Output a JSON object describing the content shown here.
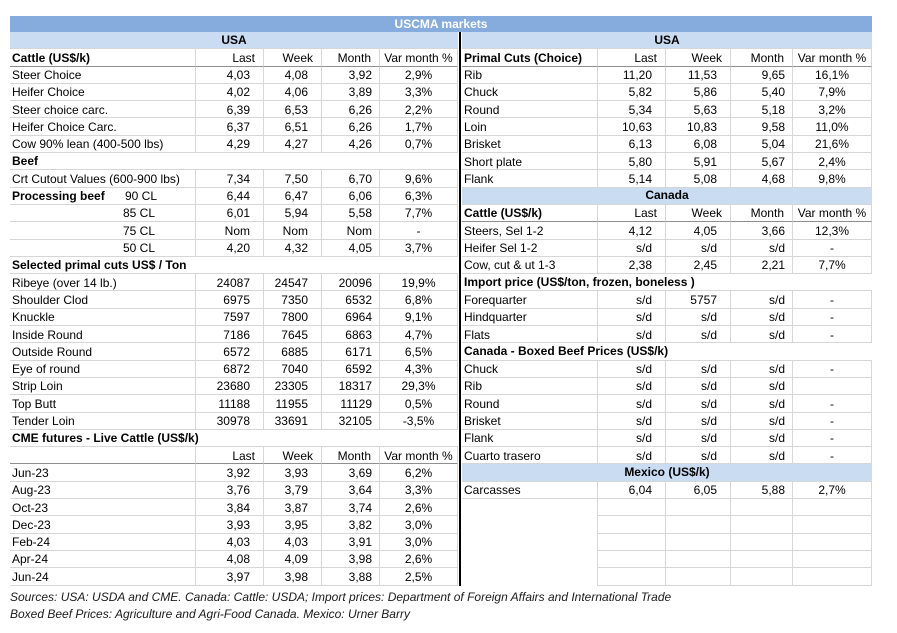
{
  "title": "USCMA markets",
  "colors": {
    "title_band": "#85ACDC",
    "region_band": "#C9DCF1",
    "divider": "#000000",
    "gridline": "#D6D6D6",
    "title_text": "#FFFFFF"
  },
  "columns": [
    "Last",
    "Week",
    "Month",
    "Var month %"
  ],
  "left_table": {
    "rows": [
      {
        "t": "band",
        "l": "USA"
      },
      {
        "t": "h",
        "l": "Cattle (US$/k)",
        "v": [
          "Last",
          "Week",
          "Month",
          "Var month %"
        ]
      },
      {
        "t": "d",
        "l": "Steer Choice",
        "v": [
          "4,03",
          "4,08",
          "3,92",
          "2,9%"
        ]
      },
      {
        "t": "d",
        "l": "Heifer Choice",
        "v": [
          "4,02",
          "4,06",
          "3,89",
          "3,3%"
        ]
      },
      {
        "t": "d",
        "l": "Steer choice carc.",
        "v": [
          "6,39",
          "6,53",
          "6,26",
          "2,2%"
        ]
      },
      {
        "t": "d",
        "l": "Heifer Choice Carc.",
        "v": [
          "6,37",
          "6,51",
          "6,26",
          "1,7%"
        ]
      },
      {
        "t": "d",
        "l": "Cow 90% lean (400-500 lbs)",
        "v": [
          "4,29",
          "4,27",
          "4,26",
          "0,7%"
        ]
      },
      {
        "t": "s",
        "l": "Beef"
      },
      {
        "t": "d",
        "l": "Crt Cutout Values (600-900 lbs)",
        "v": [
          "7,34",
          "7,50",
          "6,70",
          "9,6%"
        ]
      },
      {
        "t": "split",
        "l": "Processing beef",
        "l2": "90 CL",
        "v": [
          "6,44",
          "6,47",
          "6,06",
          "6,3%"
        ]
      },
      {
        "t": "dr",
        "l": "85 CL",
        "v": [
          "6,01",
          "5,94",
          "5,58",
          "7,7%"
        ]
      },
      {
        "t": "dr",
        "l": "75 CL",
        "v": [
          "Nom",
          "Nom",
          "Nom",
          "-"
        ]
      },
      {
        "t": "dr",
        "l": "50 CL",
        "v": [
          "4,20",
          "4,32",
          "4,05",
          "3,7%"
        ]
      },
      {
        "t": "s",
        "l": "Selected primal cuts US$ / Ton"
      },
      {
        "t": "d",
        "l": "Ribeye (over 14 lb.)",
        "v": [
          "24087",
          "24547",
          "20096",
          "19,9%"
        ]
      },
      {
        "t": "d",
        "l": "Shoulder Clod",
        "v": [
          "6975",
          "7350",
          "6532",
          "6,8%"
        ]
      },
      {
        "t": "d",
        "l": "Knuckle",
        "v": [
          "7597",
          "7800",
          "6964",
          "9,1%"
        ]
      },
      {
        "t": "d",
        "l": "Inside Round",
        "v": [
          "7186",
          "7645",
          "6863",
          "4,7%"
        ]
      },
      {
        "t": "d",
        "l": "Outside Round",
        "v": [
          "6572",
          "6885",
          "6171",
          "6,5%"
        ]
      },
      {
        "t": "d",
        "l": "Eye of round",
        "v": [
          "6872",
          "7040",
          "6592",
          "4,3%"
        ]
      },
      {
        "t": "d",
        "l": "Strip Loin",
        "v": [
          "23680",
          "23305",
          "18317",
          "29,3%"
        ]
      },
      {
        "t": "d",
        "l": "Top Butt",
        "v": [
          "11188",
          "11955",
          "11129",
          "0,5%"
        ]
      },
      {
        "t": "d",
        "l": "Tender Loin",
        "v": [
          "30978",
          "33691",
          "32105",
          "-3,5%"
        ]
      },
      {
        "t": "s",
        "l": "CME futures - Live Cattle (US$/k)"
      },
      {
        "t": "h",
        "l": "",
        "v": [
          "Last",
          "Week",
          "Month",
          "Var month %"
        ]
      },
      {
        "t": "d",
        "l": "Jun-23",
        "v": [
          "3,92",
          "3,93",
          "3,69",
          "6,2%"
        ]
      },
      {
        "t": "d",
        "l": "Aug-23",
        "v": [
          "3,76",
          "3,79",
          "3,64",
          "3,3%"
        ]
      },
      {
        "t": "d",
        "l": "Oct-23",
        "v": [
          "3,84",
          "3,87",
          "3,74",
          "2,6%"
        ]
      },
      {
        "t": "d",
        "l": "Dec-23",
        "v": [
          "3,93",
          "3,95",
          "3,82",
          "3,0%"
        ]
      },
      {
        "t": "d",
        "l": "Feb-24",
        "v": [
          "4,03",
          "4,03",
          "3,91",
          "3,0%"
        ]
      },
      {
        "t": "d",
        "l": "Apr-24",
        "v": [
          "4,08",
          "4,09",
          "3,98",
          "2,6%"
        ]
      },
      {
        "t": "d",
        "l": "Jun-24",
        "v": [
          "3,97",
          "3,98",
          "3,88",
          "2,5%"
        ]
      }
    ]
  },
  "right_table": {
    "rows": [
      {
        "t": "band",
        "l": "USA"
      },
      {
        "t": "h",
        "l": "Primal Cuts (Choice)",
        "v": [
          "Last",
          "Week",
          "Month",
          "Var month %"
        ]
      },
      {
        "t": "d",
        "l": "Rib",
        "v": [
          "11,20",
          "11,53",
          "9,65",
          "16,1%"
        ]
      },
      {
        "t": "d",
        "l": "Chuck",
        "v": [
          "5,82",
          "5,86",
          "5,40",
          "7,9%"
        ]
      },
      {
        "t": "d",
        "l": "Round",
        "v": [
          "5,34",
          "5,63",
          "5,18",
          "3,2%"
        ]
      },
      {
        "t": "d",
        "l": "Loin",
        "v": [
          "10,63",
          "10,83",
          "9,58",
          "11,0%"
        ]
      },
      {
        "t": "d",
        "l": "Brisket",
        "v": [
          "6,13",
          "6,08",
          "5,04",
          "21,6%"
        ]
      },
      {
        "t": "d",
        "l": "Short plate",
        "v": [
          "5,80",
          "5,91",
          "5,67",
          "2,4%"
        ]
      },
      {
        "t": "d",
        "l": "Flank",
        "v": [
          "5,14",
          "5,08",
          "4,68",
          "9,8%"
        ]
      },
      {
        "t": "band",
        "l": "Canada"
      },
      {
        "t": "h",
        "l": "Cattle (US$/k)",
        "v": [
          "Last",
          "Week",
          "Month",
          "Var month %"
        ]
      },
      {
        "t": "d",
        "l": "Steers, Sel 1-2",
        "v": [
          "4,12",
          "4,05",
          "3,66",
          "12,3%"
        ]
      },
      {
        "t": "d",
        "l": "Heifer Sel 1-2",
        "v": [
          "s/d",
          "s/d",
          "s/d",
          "-"
        ]
      },
      {
        "t": "d",
        "l": "Cow, cut & ut 1-3",
        "v": [
          "2,38",
          "2,45",
          "2,21",
          "7,7%"
        ]
      },
      {
        "t": "s",
        "l": "Import price (US$/ton, frozen, boneless )"
      },
      {
        "t": "d",
        "l": "Forequarter",
        "v": [
          "s/d",
          "5757",
          "s/d",
          "-"
        ]
      },
      {
        "t": "d",
        "l": "Hindquarter",
        "v": [
          "s/d",
          "s/d",
          "s/d",
          "-"
        ]
      },
      {
        "t": "d",
        "l": "Flats",
        "v": [
          "s/d",
          "s/d",
          "s/d",
          "-"
        ]
      },
      {
        "t": "s",
        "l": "Canada - Boxed Beef Prices (US$/k)"
      },
      {
        "t": "d",
        "l": "Chuck",
        "v": [
          "s/d",
          "s/d",
          "s/d",
          "-"
        ]
      },
      {
        "t": "d",
        "l": "Rib",
        "v": [
          "s/d",
          "s/d",
          "s/d",
          ""
        ]
      },
      {
        "t": "d",
        "l": "Round",
        "v": [
          "s/d",
          "s/d",
          "s/d",
          "-"
        ]
      },
      {
        "t": "d",
        "l": "Brisket",
        "v": [
          "s/d",
          "s/d",
          "s/d",
          "-"
        ]
      },
      {
        "t": "d",
        "l": "Flank",
        "v": [
          "s/d",
          "s/d",
          "s/d",
          "-"
        ]
      },
      {
        "t": "d",
        "l": "Cuarto trasero",
        "v": [
          "s/d",
          "s/d",
          "s/d",
          "-"
        ]
      },
      {
        "t": "band",
        "l": "Mexico (US$/k)"
      },
      {
        "t": "d",
        "l": "Carcasses",
        "v": [
          "6,04",
          "6,05",
          "5,88",
          "2,7%"
        ]
      },
      {
        "t": "e",
        "l": "",
        "v": [
          "",
          "",
          "",
          ""
        ]
      },
      {
        "t": "e",
        "l": "",
        "v": [
          "",
          "",
          "",
          ""
        ]
      },
      {
        "t": "e",
        "l": "",
        "v": [
          "",
          "",
          "",
          ""
        ]
      },
      {
        "t": "e",
        "l": "",
        "v": [
          "",
          "",
          "",
          ""
        ]
      },
      {
        "t": "e",
        "l": "",
        "v": [
          "",
          "",
          "",
          ""
        ]
      }
    ]
  },
  "footer": {
    "line1": "Sources: USA: USDA and CME. Canada: Cattle: USDA; Import prices: Department of Foreign Affairs and International Trade",
    "line2": "Boxed Beef Prices: Agriculture and Agri-Food Canada. Mexico: Urner Barry"
  }
}
